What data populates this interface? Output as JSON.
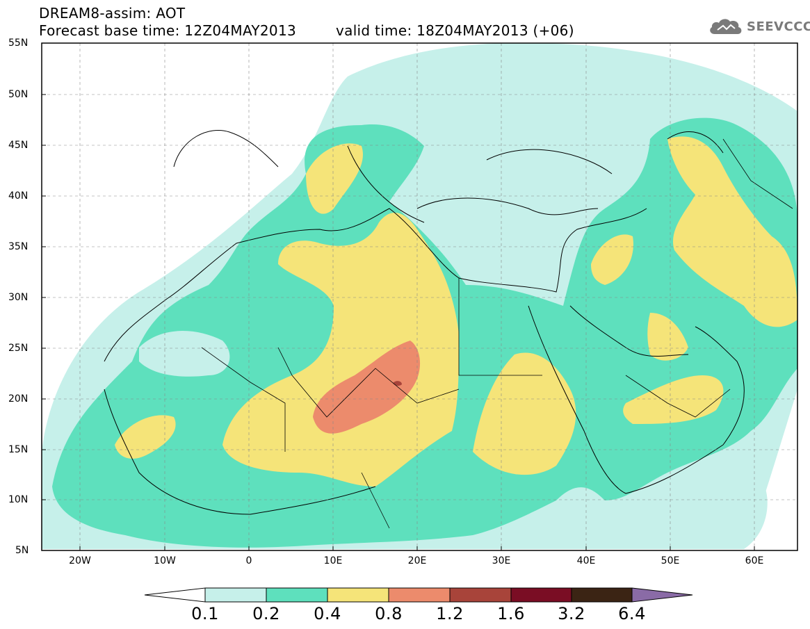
{
  "header": {
    "title": "DREAM8-assim: AOT",
    "base_time": "Forecast base time: 12Z04MAY2013",
    "valid_time": "valid time: 18Z04MAY2013 (+06)"
  },
  "logo": {
    "icon": "cloud-logo-icon",
    "text": "SEEVCCC"
  },
  "map": {
    "projection": "lat-lon",
    "lon_range": [
      -25,
      65
    ],
    "lat_range": [
      5,
      55
    ],
    "lat_ticks": [
      "5N",
      "10N",
      "15N",
      "20N",
      "25N",
      "30N",
      "35N",
      "40N",
      "45N",
      "50N",
      "55N"
    ],
    "lon_ticks": [
      "20W",
      "10W",
      "0",
      "10E",
      "20E",
      "30E",
      "40E",
      "50E",
      "60E"
    ],
    "grid": "dashed",
    "variable": "Aerosol optical thickness"
  },
  "colorbar": {
    "labels": [
      "0.1",
      "0.2",
      "0.4",
      "0.8",
      "1.2",
      "1.6",
      "3.2",
      "6.4"
    ],
    "colors": [
      "#ffffff",
      "#c6f0ea",
      "#5ee0bd",
      "#f5e479",
      "#ec8b6c",
      "#a8443a",
      "#7a0d24",
      "#3b2414",
      "#8a6ba6"
    ]
  }
}
